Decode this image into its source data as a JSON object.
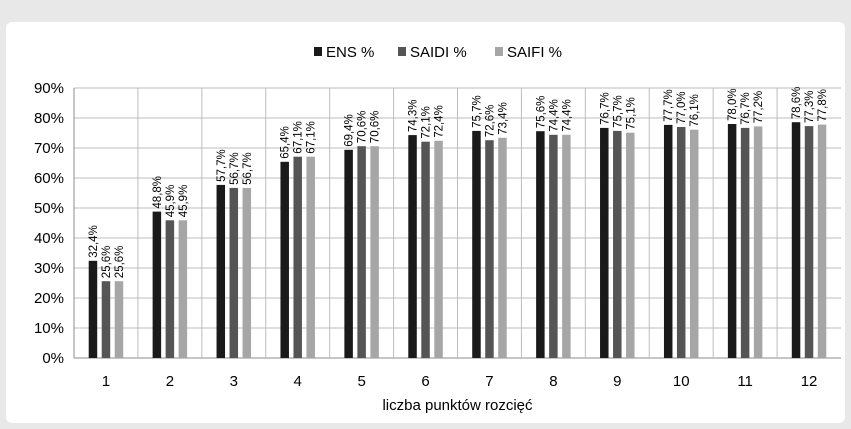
{
  "chart_data": {
    "type": "bar",
    "categories": [
      "1",
      "2",
      "3",
      "4",
      "5",
      "6",
      "7",
      "8",
      "9",
      "10",
      "11",
      "12"
    ],
    "series": [
      {
        "name": "ENS %",
        "color": "#1a1a1a",
        "values": [
          32.4,
          48.8,
          57.7,
          65.4,
          69.4,
          74.3,
          75.7,
          75.6,
          76.7,
          77.7,
          78.0,
          78.6
        ],
        "labels": [
          "32,4%",
          "48,8%",
          "57,7%",
          "65,4%",
          "69,4%",
          "74,3%",
          "75,7%",
          "75,6%",
          "76,7%",
          "77,7%",
          "78,0%",
          "78,6%"
        ]
      },
      {
        "name": "SAIDI %",
        "color": "#555555",
        "values": [
          25.6,
          45.9,
          56.7,
          67.1,
          70.6,
          72.1,
          72.6,
          74.4,
          75.7,
          77.0,
          76.7,
          77.3
        ],
        "labels": [
          "25,6%",
          "45,9%",
          "56,7%",
          "67,1%",
          "70,6%",
          "72,1%",
          "72,6%",
          "74,4%",
          "75,7%",
          "77,0%",
          "76,7%",
          "77,3%"
        ]
      },
      {
        "name": "SAIFI %",
        "color": "#a6a6a6",
        "values": [
          25.6,
          45.9,
          56.7,
          67.1,
          70.6,
          72.4,
          73.4,
          74.4,
          75.1,
          76.1,
          77.2,
          77.8
        ],
        "labels": [
          "25,6%",
          "45,9%",
          "56,7%",
          "67,1%",
          "70,6%",
          "72,4%",
          "73,4%",
          "74,4%",
          "75,1%",
          "76,1%",
          "77,2%",
          "77,8%"
        ]
      }
    ],
    "ylim": [
      0,
      90
    ],
    "yticks": [
      "0%",
      "10%",
      "20%",
      "30%",
      "40%",
      "50%",
      "60%",
      "70%",
      "80%",
      "90%"
    ],
    "xlabel": "liczba punktów rozcięć",
    "ylabel": "",
    "title": "",
    "legend_position": "top",
    "grid": true
  }
}
